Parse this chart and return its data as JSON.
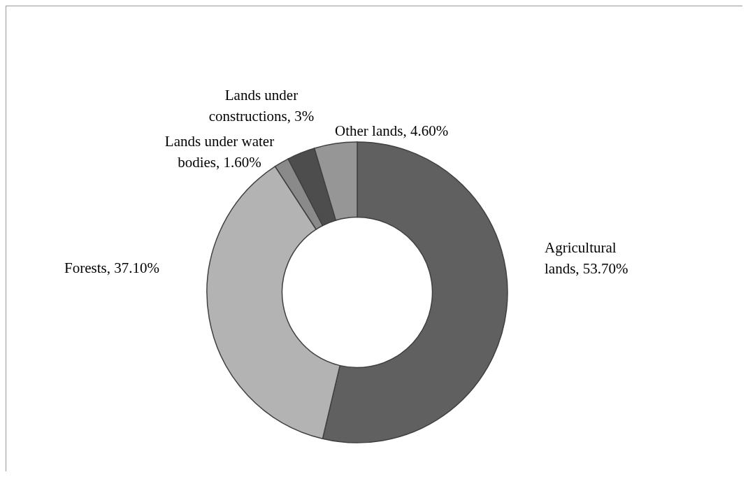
{
  "chart_data": {
    "type": "donut",
    "categories": [
      "Agricultural lands",
      "Forests",
      "Lands under water bodies",
      "Lands under constructions",
      "Other lands"
    ],
    "values": [
      53.7,
      37.1,
      1.6,
      3,
      4.6
    ],
    "value_labels": [
      "53.70%",
      "37.10%",
      "1.60%",
      "3%",
      "4.60%"
    ],
    "colors": [
      "#606060",
      "#b3b3b3",
      "#8a8a8a",
      "#4d4d4d",
      "#969696"
    ]
  }
}
